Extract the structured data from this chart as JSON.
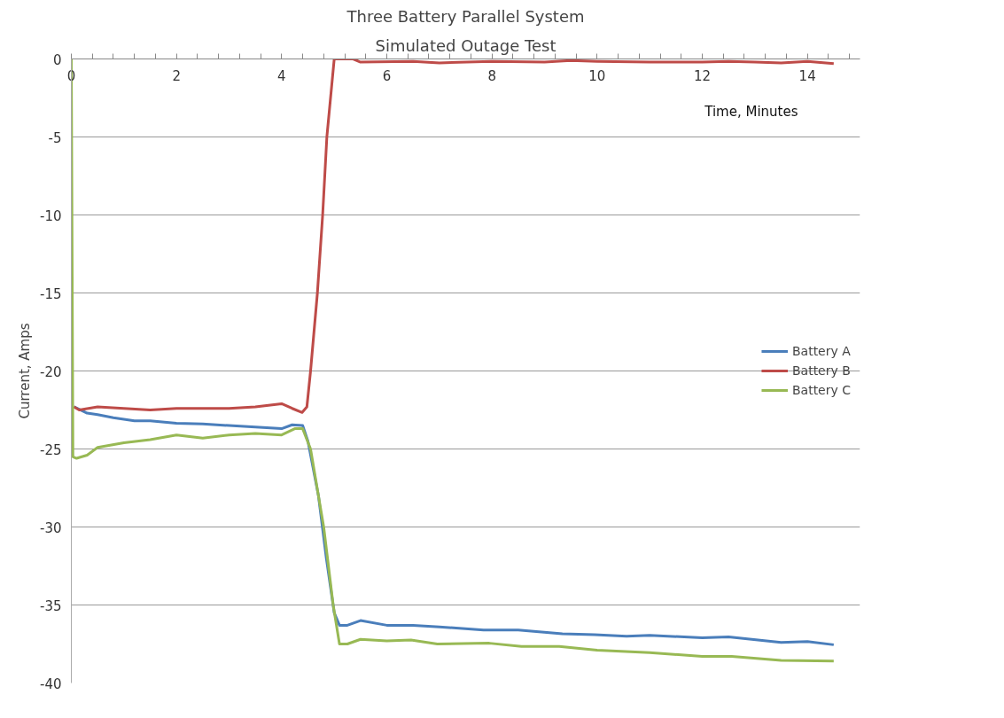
{
  "chart_data": {
    "type": "line",
    "title": "Three Battery Parallel System",
    "subtitle": "Simulated Outage Test",
    "xlabel": "Time, Minutes",
    "ylabel": "Current, Amps",
    "xlim": [
      0,
      15
    ],
    "ylim": [
      -40,
      0
    ],
    "xticks": [
      0,
      {
        "value": 0.4,
        "label": null
      },
      {
        "value": 0.8,
        "label": null
      },
      {
        "value": 1.2,
        "label": null
      },
      {
        "value": 1.6,
        "label": null
      },
      2,
      {
        "value": 2.4,
        "label": null
      },
      {
        "value": 2.8,
        "label": null
      },
      {
        "value": 3.2,
        "label": null
      },
      {
        "value": 3.6,
        "label": null
      },
      4,
      {
        "value": 4.4,
        "label": null
      },
      {
        "value": 4.8,
        "label": null
      },
      {
        "value": 5.2,
        "label": null
      },
      {
        "value": 5.6,
        "label": null
      },
      6,
      {
        "value": 6.4,
        "label": null
      },
      {
        "value": 6.8,
        "label": null
      },
      {
        "value": 7.2,
        "label": null
      },
      {
        "value": 7.6,
        "label": null
      },
      8,
      {
        "value": 8.4,
        "label": null
      },
      {
        "value": 8.8,
        "label": null
      },
      {
        "value": 9.2,
        "label": null
      },
      {
        "value": 9.6,
        "label": null
      },
      10,
      {
        "value": 10.4,
        "label": null
      },
      {
        "value": 10.8,
        "label": null
      },
      {
        "value": 11.2,
        "label": null
      },
      {
        "value": 11.6,
        "label": null
      },
      12,
      {
        "value": 12.4,
        "label": null
      },
      {
        "value": 12.8,
        "label": null
      },
      {
        "value": 13.2,
        "label": null
      },
      {
        "value": 13.6,
        "label": null
      },
      14,
      {
        "value": 14.4,
        "label": null
      },
      {
        "value": 14.8,
        "label": null
      }
    ],
    "yticks": [
      -40,
      -35,
      -30,
      -25,
      -20,
      -15,
      -10,
      -5,
      0
    ],
    "grid": "y",
    "legend": "right",
    "marker": "none",
    "line_style": "solid",
    "series": [
      {
        "name": "Battery A",
        "color": "#4a7ebb",
        "x": [
          0.05,
          0.3,
          0.5,
          0.8,
          1.2,
          1.5,
          2,
          2.5,
          3,
          3.5,
          4,
          4.2,
          4.4,
          4.5,
          4.7,
          4.85,
          5.0,
          5.1,
          5.25,
          5.5,
          6.0,
          6.5,
          7.0,
          7.84,
          8.5,
          9.34,
          9.95,
          10.56,
          11.0,
          12.0,
          12.5,
          13.5,
          14.0,
          14.5
        ],
        "values": [
          -22.3,
          -22.7,
          -22.8,
          -23.0,
          -23.2,
          -23.2,
          -23.35,
          -23.4,
          -23.5,
          -23.6,
          -23.7,
          -23.45,
          -23.5,
          -24.5,
          -28,
          -32,
          -35.5,
          -36.3,
          -36.3,
          -36.0,
          -36.3,
          -36.3,
          -36.4,
          -36.6,
          -36.6,
          -36.85,
          -36.9,
          -37.0,
          -36.95,
          -37.1,
          -37.05,
          -37.4,
          -37.35,
          -37.55
        ]
      },
      {
        "name": "Battery B",
        "color": "#be4b48",
        "x": [
          0.05,
          0.15,
          0.5,
          1,
          1.5,
          2,
          3,
          3.5,
          4,
          4.2,
          4.39,
          4.48,
          4.55,
          4.68,
          4.78,
          4.86,
          5.0,
          5.36,
          5.5,
          6.5,
          7,
          8,
          9,
          9.5,
          10,
          11,
          12,
          12.5,
          13,
          13.5,
          14,
          14.5
        ],
        "values": [
          -22.3,
          -22.5,
          -22.3,
          -22.4,
          -22.5,
          -22.4,
          -22.4,
          -22.3,
          -22.1,
          -22.4,
          -22.66,
          -22.3,
          -20,
          -15,
          -10,
          -5,
          0,
          0,
          -0.2,
          -0.15,
          -0.25,
          -0.15,
          -0.2,
          -0.1,
          -0.15,
          -0.2,
          -0.2,
          -0.15,
          -0.2,
          -0.25,
          -0.15,
          -0.3
        ]
      },
      {
        "name": "Battery C",
        "color": "#98b954",
        "x": [
          0,
          0.03,
          0.1,
          0.3,
          0.5,
          1.0,
          1.5,
          2,
          2.5,
          3,
          3.5,
          4,
          4.25,
          4.4,
          4.55,
          4.8,
          4.98,
          5.1,
          5.25,
          5.5,
          6.0,
          6.46,
          6.96,
          7.95,
          8.56,
          9.28,
          10.0,
          11.0,
          12.0,
          12.56,
          13.5,
          14.5
        ],
        "values": [
          0,
          -25.5,
          -25.6,
          -25.4,
          -24.9,
          -24.6,
          -24.4,
          -24.1,
          -24.3,
          -24.1,
          -24.0,
          -24.1,
          -23.7,
          -23.7,
          -25,
          -30,
          -35,
          -37.5,
          -37.5,
          -37.2,
          -37.3,
          -37.25,
          -37.5,
          -37.45,
          -37.65,
          -37.65,
          -37.9,
          -38.05,
          -38.3,
          -38.3,
          -38.55,
          -38.6
        ]
      }
    ]
  }
}
